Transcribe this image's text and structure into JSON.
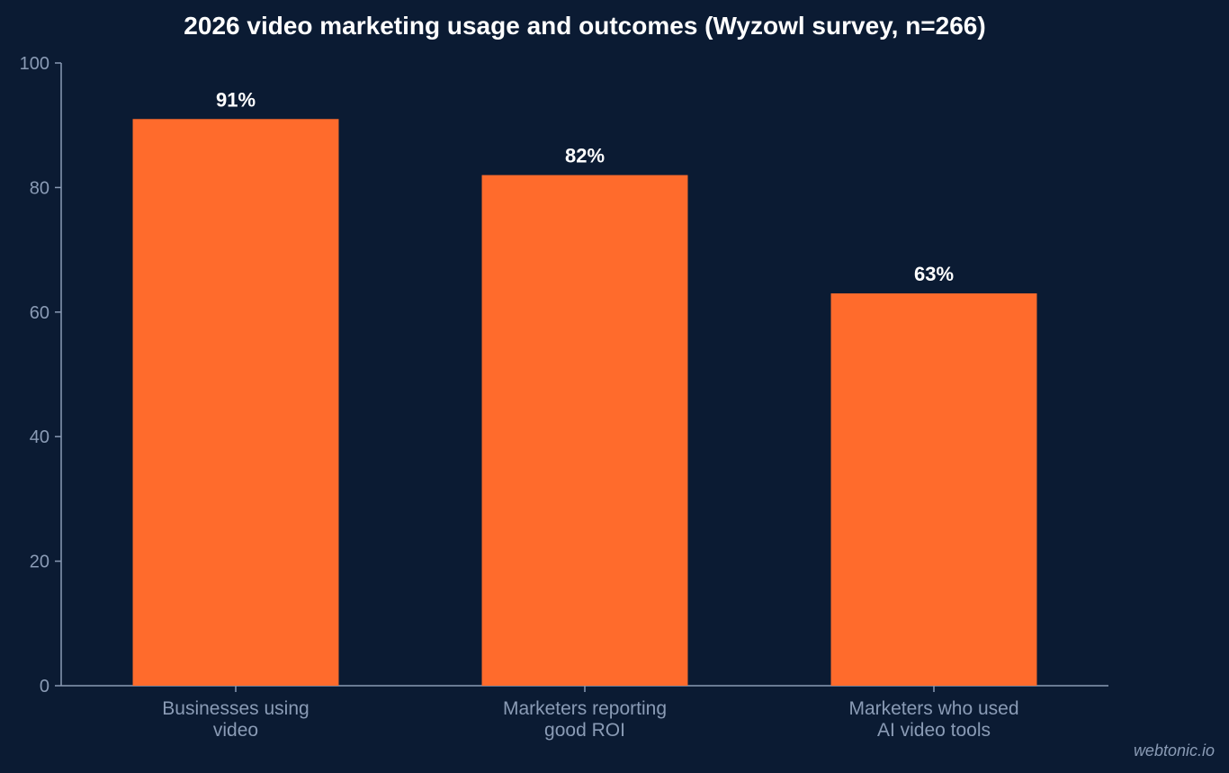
{
  "chart_data": {
    "type": "bar",
    "title": "2026 video marketing usage and outcomes (Wyzowl survey, n=266)",
    "categories": [
      [
        "Businesses using",
        "video"
      ],
      [
        "Marketers reporting",
        "good ROI"
      ],
      [
        "Marketers who used",
        "AI video tools"
      ]
    ],
    "values": [
      91,
      82,
      63
    ],
    "value_labels": [
      "91%",
      "82%",
      "63%"
    ],
    "ylim": [
      0,
      100
    ],
    "yticks": [
      "0",
      "20",
      "40",
      "60",
      "80",
      "100"
    ],
    "xlabel": "",
    "ylabel": "",
    "grid": false,
    "legend": "none"
  },
  "watermark": "webtonic.io",
  "colors": {
    "background": "#0b1b33",
    "bar": "#ff6b2c",
    "axis": "#8a9bb5",
    "text": "#ffffff"
  }
}
